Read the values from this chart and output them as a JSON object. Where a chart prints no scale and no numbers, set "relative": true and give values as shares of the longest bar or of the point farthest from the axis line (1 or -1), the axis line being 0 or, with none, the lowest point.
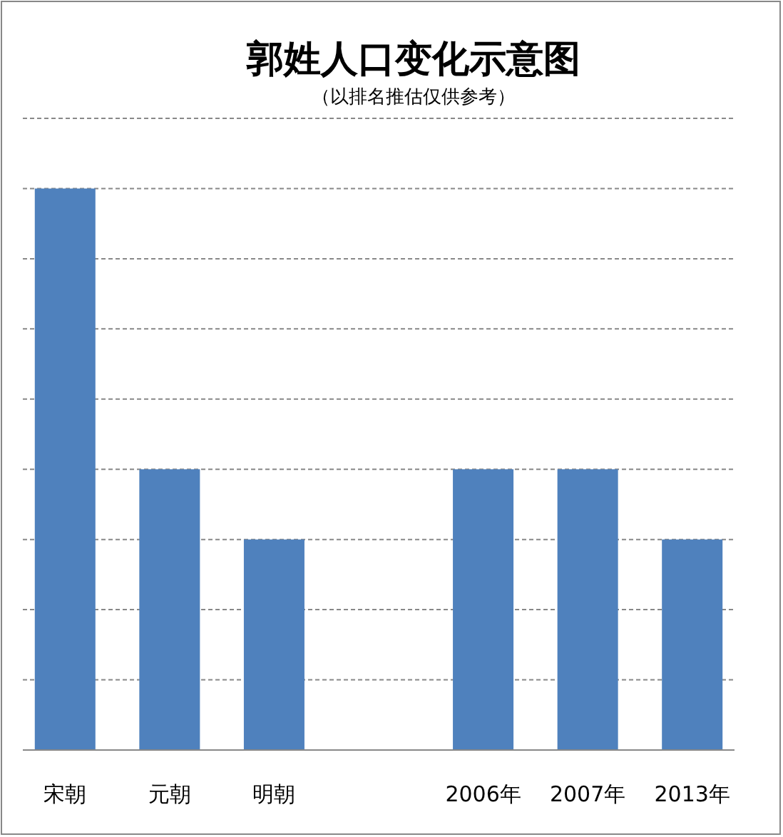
{
  "chart_data": {
    "type": "bar",
    "title": "郭姓人口变化示意图",
    "subtitle": "（以排名推估仅供参考）",
    "categories": [
      "宋朝",
      "元朝",
      "明朝",
      null,
      "2006年",
      "2007年",
      "2013年"
    ],
    "values": [
      1,
      0.5,
      0.375,
      null,
      0.5,
      0.5,
      0.375
    ],
    "color": "#4f81bd",
    "relative": true,
    "grid": true
  }
}
